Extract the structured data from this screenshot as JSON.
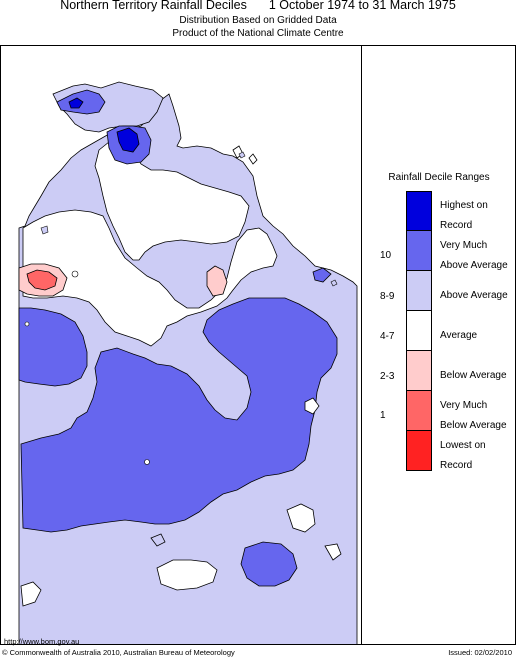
{
  "header": {
    "title_left": "Northern Territory Rainfall Deciles",
    "title_right": "1 October 1974 to 31 March 1975",
    "subtitle_1": "Distribution Based on Gridded Data",
    "subtitle_2": "Product of the National Climate Centre"
  },
  "legend": {
    "title": "Rainfall Decile Ranges",
    "entries": [
      {
        "label": "Highest on Record",
        "line1": "Highest on",
        "line2": "Record",
        "decile": "",
        "color": "#0000dd"
      },
      {
        "label": "Very Much Above Average",
        "line1": "Very Much",
        "line2": "Above Average",
        "decile": "10",
        "color": "#6666ee"
      },
      {
        "label": "Above Average",
        "line1": "Above Average",
        "line2": "",
        "decile": "8-9",
        "color": "#ccccf5"
      },
      {
        "label": "Average",
        "line1": "Average",
        "line2": "",
        "decile": "4-7",
        "color": "#ffffff"
      },
      {
        "label": "Below Average",
        "line1": "Below Average",
        "line2": "",
        "decile": "2-3",
        "color": "#ffcccc"
      },
      {
        "label": "Very Much Below Average",
        "line1": "Very Much",
        "line2": "Below Average",
        "decile": "1",
        "color": "#ff6666"
      },
      {
        "label": "Lowest on Record",
        "line1": "Lowest on",
        "line2": "Record",
        "decile": "",
        "color": "#ff2222"
      }
    ]
  },
  "footer": {
    "url": "http://www.bom.gov.au",
    "copyright": "© Commonwealth of Australia 2010, Australian Bureau of Meteorology",
    "issued": "Issued: 02/02/2010"
  }
}
